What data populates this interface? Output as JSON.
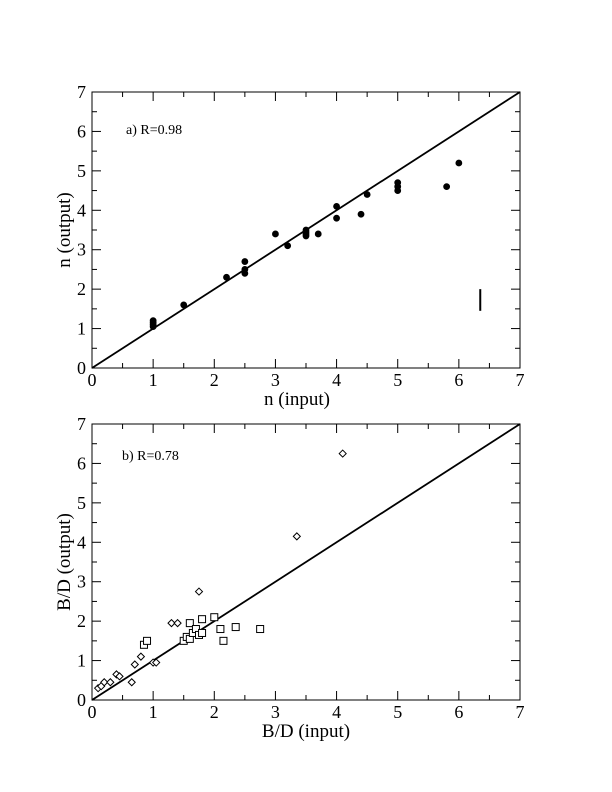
{
  "chart_data": [
    {
      "type": "scatter",
      "panel": "a",
      "annotation": "a) R=0.98",
      "xlabel": "n (input)",
      "ylabel": "n (output)",
      "xlim": [
        0,
        7
      ],
      "ylim": [
        0,
        7
      ],
      "xticks": [
        "0",
        "1",
        "2",
        "3",
        "4",
        "5",
        "6",
        "7"
      ],
      "yticks": [
        "0",
        "1",
        "2",
        "3",
        "4",
        "5",
        "6",
        "7"
      ],
      "grid": false,
      "reference_line": {
        "from": [
          0,
          0
        ],
        "to": [
          7,
          7
        ]
      },
      "error_bar_example": {
        "x": 6.35,
        "y_low": 1.45,
        "y_high": 2.0
      },
      "series": [
        {
          "marker": "filled-circle",
          "points": [
            [
              1.0,
              1.05
            ],
            [
              1.0,
              1.1
            ],
            [
              1.0,
              1.15
            ],
            [
              1.0,
              1.2
            ],
            [
              1.5,
              1.6
            ],
            [
              2.2,
              2.3
            ],
            [
              2.5,
              2.4
            ],
            [
              2.5,
              2.5
            ],
            [
              2.5,
              2.7
            ],
            [
              3.0,
              3.4
            ],
            [
              3.2,
              3.1
            ],
            [
              3.5,
              3.35
            ],
            [
              3.5,
              3.4
            ],
            [
              3.5,
              3.45
            ],
            [
              3.5,
              3.5
            ],
            [
              3.7,
              3.4
            ],
            [
              4.0,
              3.8
            ],
            [
              4.0,
              4.1
            ],
            [
              4.4,
              3.9
            ],
            [
              4.5,
              4.4
            ],
            [
              5.0,
              4.5
            ],
            [
              5.0,
              4.6
            ],
            [
              5.0,
              4.7
            ],
            [
              5.8,
              4.6
            ],
            [
              6.0,
              5.2
            ]
          ]
        }
      ]
    },
    {
      "type": "scatter",
      "panel": "b",
      "annotation": "b) R=0.78",
      "xlabel": "B/D (input)",
      "ylabel": "B/D (output)",
      "xlim": [
        0,
        7
      ],
      "ylim": [
        0,
        7
      ],
      "xticks": [
        "0",
        "1",
        "2",
        "3",
        "4",
        "5",
        "6",
        "7"
      ],
      "yticks": [
        "0",
        "1",
        "2",
        "3",
        "4",
        "5",
        "6",
        "7"
      ],
      "grid": false,
      "reference_line": {
        "from": [
          0,
          0
        ],
        "to": [
          7,
          7
        ]
      },
      "series": [
        {
          "marker": "open-diamond",
          "points": [
            [
              0.1,
              0.3
            ],
            [
              0.15,
              0.35
            ],
            [
              0.2,
              0.45
            ],
            [
              0.3,
              0.45
            ],
            [
              0.4,
              0.65
            ],
            [
              0.45,
              0.6
            ],
            [
              0.65,
              0.45
            ],
            [
              0.7,
              0.9
            ],
            [
              0.8,
              1.1
            ],
            [
              1.0,
              0.95
            ],
            [
              1.05,
              0.95
            ],
            [
              1.3,
              1.95
            ],
            [
              1.4,
              1.95
            ],
            [
              1.75,
              2.75
            ],
            [
              3.35,
              4.15
            ],
            [
              4.1,
              6.25
            ]
          ]
        },
        {
          "marker": "open-square",
          "points": [
            [
              0.85,
              1.4
            ],
            [
              0.9,
              1.5
            ],
            [
              1.5,
              1.5
            ],
            [
              1.55,
              1.6
            ],
            [
              1.6,
              1.55
            ],
            [
              1.6,
              1.95
            ],
            [
              1.65,
              1.7
            ],
            [
              1.7,
              1.8
            ],
            [
              1.75,
              1.65
            ],
            [
              1.8,
              1.7
            ],
            [
              1.8,
              2.05
            ],
            [
              2.0,
              2.1
            ],
            [
              2.1,
              1.8
            ],
            [
              2.15,
              1.5
            ],
            [
              2.35,
              1.85
            ],
            [
              2.75,
              1.8
            ]
          ]
        }
      ]
    }
  ]
}
